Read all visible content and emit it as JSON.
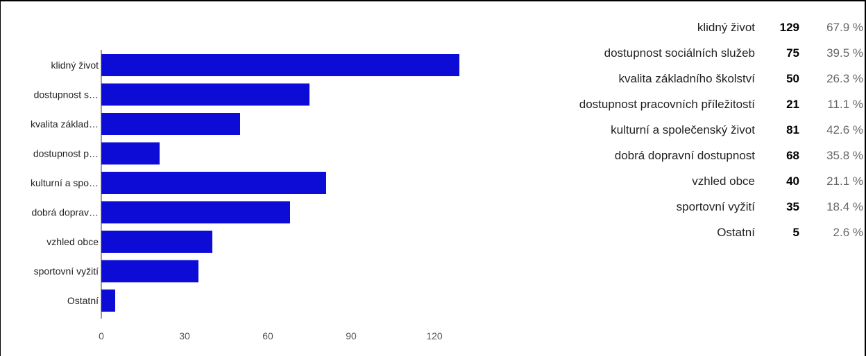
{
  "colors": {
    "bar": "#0c0cd6",
    "axis": "#333333",
    "tick": "#555555"
  },
  "chart_data": {
    "type": "bar",
    "orientation": "horizontal",
    "categories": [
      "klidný život",
      "dostupnost s…",
      "kvalita základ…",
      "dostupnost p…",
      "kulturní a spo…",
      "dobrá doprav…",
      "vzhled obce",
      "sportovní vyžití",
      "Ostatní"
    ],
    "values": [
      129,
      75,
      50,
      21,
      81,
      68,
      40,
      35,
      5
    ],
    "xlim": [
      0,
      140
    ],
    "xticks": [
      0,
      30,
      60,
      90,
      120
    ],
    "grid": false,
    "legend": "none"
  },
  "stats": [
    {
      "label": "klidný život",
      "count": "129",
      "percent": "67.9 %"
    },
    {
      "label": "dostupnost sociálních služeb",
      "count": "75",
      "percent": "39.5 %"
    },
    {
      "label": "kvalita základního školství",
      "count": "50",
      "percent": "26.3 %"
    },
    {
      "label": "dostupnost pracovních příležitostí",
      "count": "21",
      "percent": "11.1 %"
    },
    {
      "label": "kulturní a společenský život",
      "count": "81",
      "percent": "42.6 %"
    },
    {
      "label": "dobrá dopravní dostupnost",
      "count": "68",
      "percent": "35.8 %"
    },
    {
      "label": "vzhled obce",
      "count": "40",
      "percent": "21.1 %"
    },
    {
      "label": "sportovní vyžití",
      "count": "35",
      "percent": "18.4 %"
    },
    {
      "label": "Ostatní",
      "count": "5",
      "percent": "2.6 %"
    }
  ]
}
